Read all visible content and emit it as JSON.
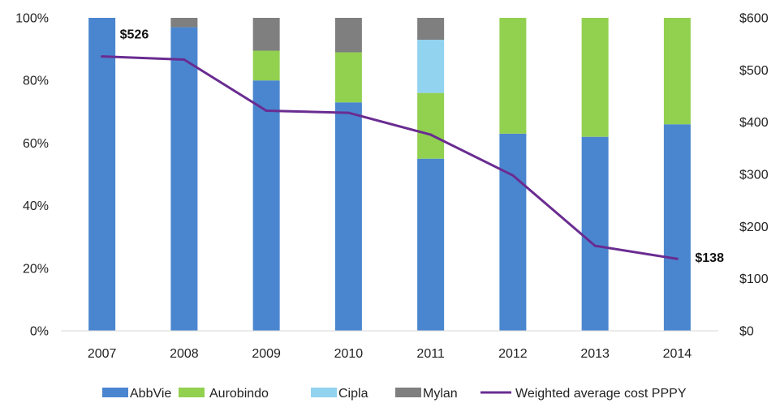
{
  "chart_data": {
    "type": "bar",
    "stacked": true,
    "title": "",
    "xlabel": "",
    "ylabel": "",
    "categories": [
      "2007",
      "2008",
      "2009",
      "2010",
      "2011",
      "2012",
      "2013",
      "2014"
    ],
    "ylim": [
      0,
      100
    ],
    "y_ticks": [
      "0%",
      "20%",
      "40%",
      "60%",
      "80%",
      "100%"
    ],
    "y2lim": [
      0,
      600
    ],
    "y2_ticks": [
      "$0",
      "$100",
      "$200",
      "$300",
      "$400",
      "$500",
      "$600"
    ],
    "grid": false,
    "legend_position": "bottom",
    "series": [
      {
        "name": "AbbVie",
        "color": "#4a86cf",
        "values": [
          100,
          97,
          80,
          73,
          55,
          63,
          62,
          66
        ]
      },
      {
        "name": "Aurobindo",
        "color": "#92d050",
        "values": [
          0,
          0,
          9.5,
          16,
          21,
          37,
          38,
          34
        ]
      },
      {
        "name": "Cipla",
        "color": "#92d3ef",
        "values": [
          0,
          0,
          0,
          0,
          17,
          0,
          0,
          0
        ]
      },
      {
        "name": "Mylan",
        "color": "#7f7f7f",
        "values": [
          0,
          3,
          10.5,
          11,
          7,
          0,
          0,
          0
        ]
      }
    ],
    "line_series": {
      "name": "Weighted average cost PPPY",
      "color": "#6a2c91",
      "axis": "right",
      "values": [
        526,
        520,
        422,
        418,
        376,
        298,
        163,
        138
      ]
    },
    "annotations": [
      {
        "category": "2007",
        "text": "$526"
      },
      {
        "category": "2014",
        "text": "$138"
      }
    ]
  }
}
